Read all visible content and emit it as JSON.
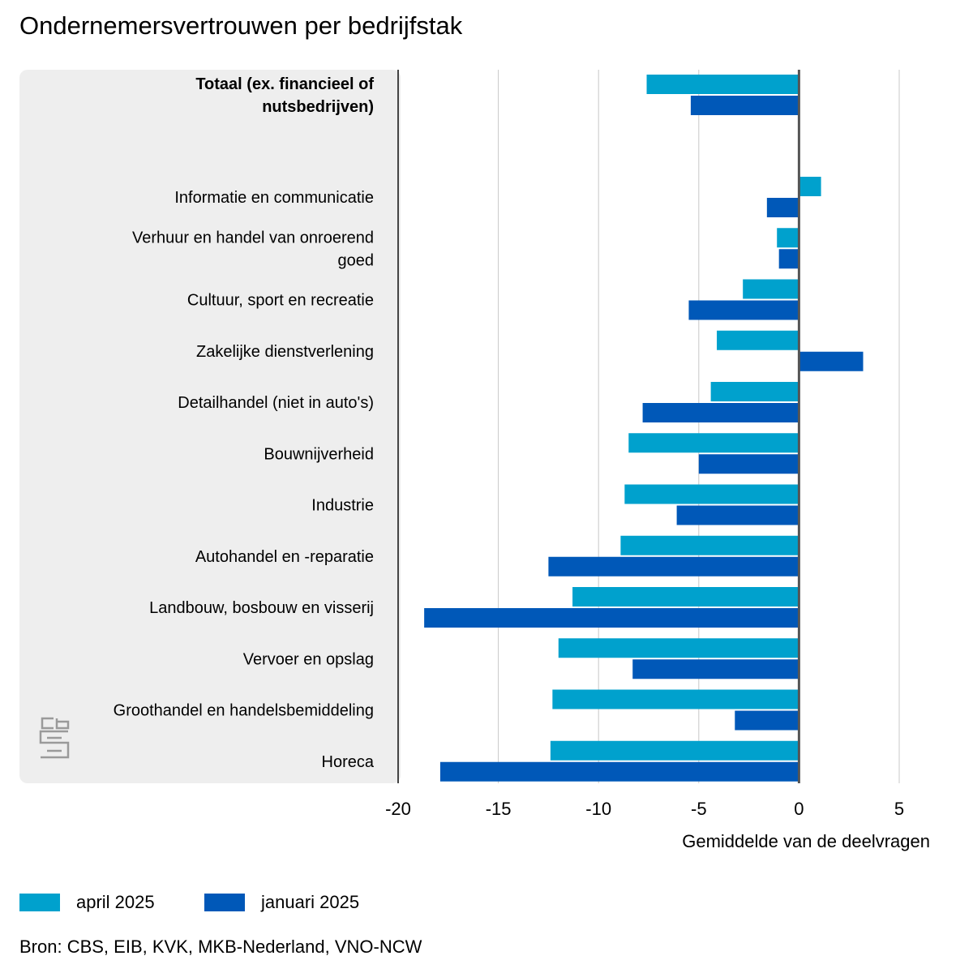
{
  "title": "Ondernemersvertrouwen per bedrijfstak",
  "legend": [
    {
      "label": "april 2025",
      "color": "#00a1cd"
    },
    {
      "label": "januari 2025",
      "color": "#0058b8"
    }
  ],
  "source": "Bron: CBS, EIB, KVK, MKB-Nederland, VNO-NCW",
  "chart_data": {
    "type": "bar",
    "orientation": "horizontal",
    "xlabel": "Gemiddelde van de deelvragen",
    "xlim": [
      -20,
      5
    ],
    "xticks": [
      "-20",
      "-15",
      "-10",
      "-5",
      "0",
      "5"
    ],
    "xtick_values": [
      -20,
      -15,
      -10,
      -5,
      0,
      5
    ],
    "grid": true,
    "legend_position": "bottom-left",
    "categories": [
      "Totaal (ex. financieel of nutsbedrijven)",
      "Informatie en communicatie",
      "Verhuur en handel van onroerend goed",
      "Cultuur, sport en recreatie",
      "Zakelijke dienstverlening",
      "Detailhandel (niet in auto's)",
      "Bouwnijverheid",
      "Industrie",
      "Autohandel en -reparatie",
      "Landbouw, bosbouw en visserij",
      "Vervoer en opslag",
      "Groothandel en handelsbemiddeling",
      "Horeca"
    ],
    "category_lines": [
      [
        "Totaal (ex. financieel of",
        "nutsbedrijven)"
      ],
      [
        "Informatie en communicatie"
      ],
      [
        "Verhuur en handel van onroerend",
        "goed"
      ],
      [
        "Cultuur, sport en recreatie"
      ],
      [
        "Zakelijke dienstverlening"
      ],
      [
        "Detailhandel (niet in auto's)"
      ],
      [
        "Bouwnijverheid"
      ],
      [
        "Industrie"
      ],
      [
        "Autohandel en -reparatie"
      ],
      [
        "Landbouw, bosbouw en visserij"
      ],
      [
        "Vervoer en opslag"
      ],
      [
        "Groothandel en handelsbemiddeling"
      ],
      [
        "Horeca"
      ]
    ],
    "bold_category": "Totaal (ex. financieel of nutsbedrijven)",
    "series": [
      {
        "name": "april 2025",
        "color": "#00a1cd",
        "values": [
          -7.6,
          1.1,
          -1.1,
          -2.8,
          -4.1,
          -4.4,
          -8.5,
          -8.7,
          -8.9,
          -11.3,
          -12.0,
          -12.3,
          -12.4
        ]
      },
      {
        "name": "januari 2025",
        "color": "#0058b8",
        "values": [
          -5.4,
          -1.6,
          -1.0,
          -5.5,
          3.2,
          -7.8,
          -5.0,
          -6.1,
          -12.5,
          -18.7,
          -8.3,
          -3.2,
          -17.9
        ]
      }
    ]
  }
}
